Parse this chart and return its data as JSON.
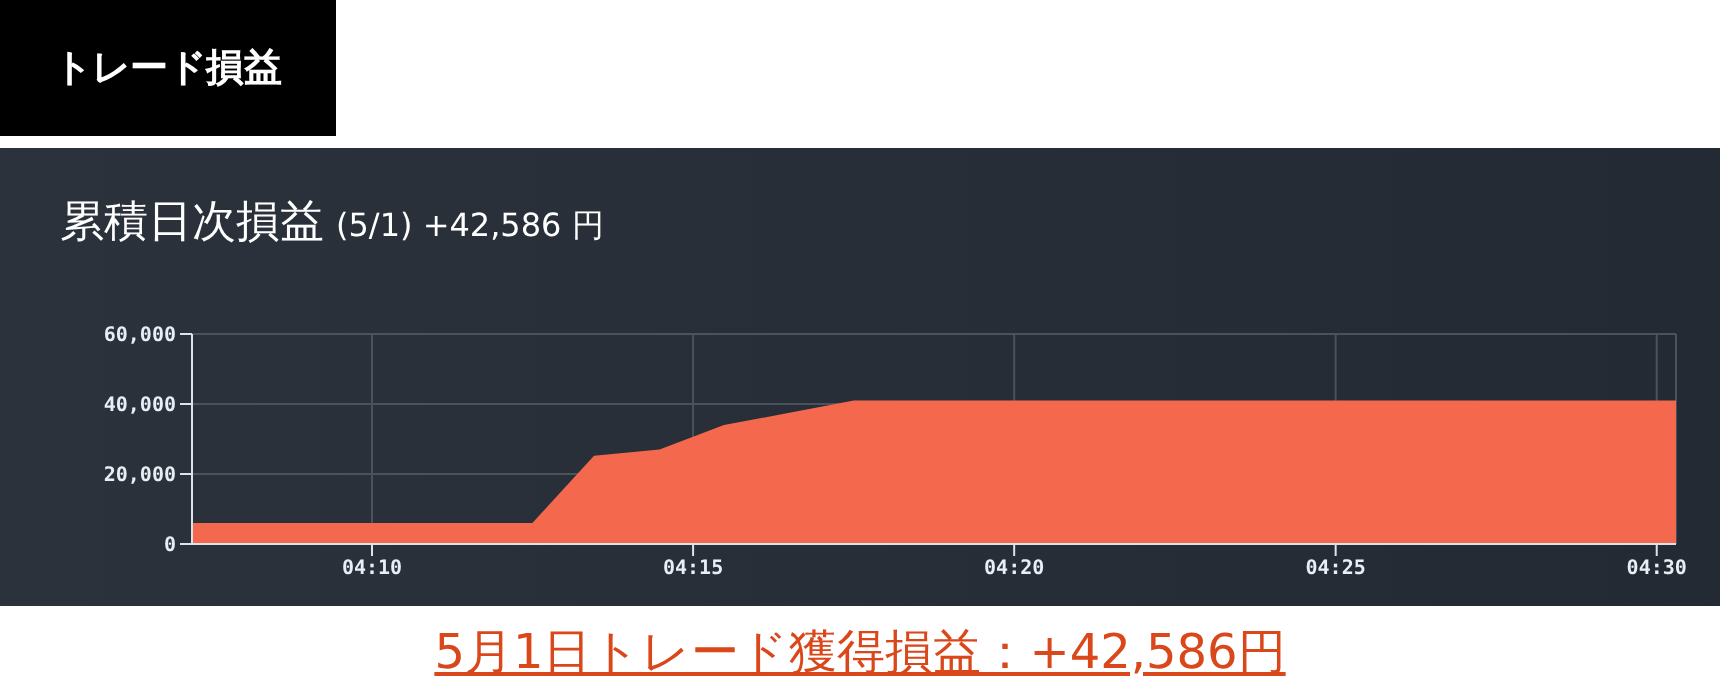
{
  "chart_data": {
    "type": "area",
    "title": "累積日次損益",
    "subtitle": "(5/1) +42,586 円",
    "annotations": [
      "トレード損益",
      "5月1日トレード獲得損益：+42,586円"
    ],
    "x": [
      4.12,
      4.2083,
      4.2243,
      4.2413,
      4.258,
      4.275,
      4.2917,
      4.505
    ],
    "values": [
      6000,
      6000,
      25200,
      27000,
      34000,
      37500,
      41000,
      41000
    ],
    "color": "#f4694d",
    "xlim": [
      4.12,
      4.505
    ],
    "xticks": [
      {
        "value": 4.1667,
        "label": "04:10"
      },
      {
        "value": 4.25,
        "label": "04:15"
      },
      {
        "value": 4.3333,
        "label": "04:20"
      },
      {
        "value": 4.4167,
        "label": "04:25"
      },
      {
        "value": 4.5,
        "label": "04:30"
      }
    ],
    "ylim": [
      0,
      60000
    ],
    "yticks": [
      0,
      {
        "value": 20000,
        "label": "20,000"
      },
      {
        "value": 40000,
        "label": "40,000"
      },
      {
        "value": 60000,
        "label": "60,000"
      }
    ],
    "grid": true,
    "legend": false
  }
}
